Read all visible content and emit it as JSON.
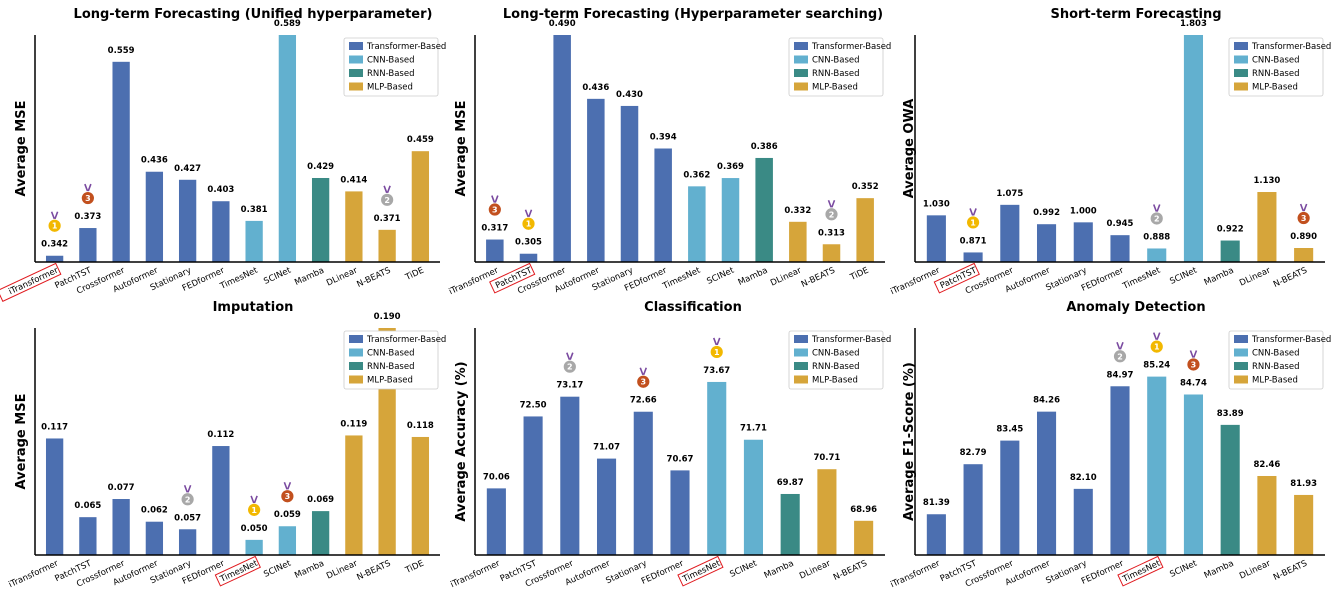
{
  "colors": {
    "Transformer-Based": "#4c6fb0",
    "CNN-Based": "#62b0cf",
    "RNN-Based": "#3a8a85",
    "MLP-Based": "#d6a53a",
    "highlight": "#e0191e",
    "gold": "#f2b800",
    "silver": "#a8a8a8",
    "bronze": "#c2501e"
  },
  "legend": {
    "entries": [
      "Transformer-Based",
      "CNN-Based",
      "RNN-Based",
      "MLP-Based"
    ],
    "placement": "top-right"
  },
  "chart_data": [
    {
      "type": "bar",
      "title": "Long-term Forecasting (Unified hyperparameter)",
      "ylabel": "Average MSE",
      "categories": [
        "iTransformer",
        "PatchTST",
        "Crossformer",
        "Autoformer",
        "Stationary",
        "FEDformer",
        "TimesNet",
        "SCINet",
        "Mamba",
        "DLinear",
        "N-BEATS",
        "TiDE"
      ],
      "values": [
        0.342,
        0.373,
        0.559,
        0.436,
        0.427,
        0.403,
        0.381,
        0.589,
        0.429,
        0.414,
        0.371,
        0.459
      ],
      "value_labels": [
        "0.342",
        "0.373",
        "0.559",
        "0.436",
        "0.427",
        "0.403",
        "0.381",
        "0.589",
        "0.429",
        "0.414",
        "0.371",
        "0.459"
      ],
      "groups": [
        "Transformer-Based",
        "Transformer-Based",
        "Transformer-Based",
        "Transformer-Based",
        "Transformer-Based",
        "Transformer-Based",
        "CNN-Based",
        "CNN-Based",
        "RNN-Based",
        "MLP-Based",
        "MLP-Based",
        "MLP-Based"
      ],
      "ylim": [
        0.335,
        0.589
      ],
      "highlight_category": "iTransformer",
      "medals": [
        {
          "index": 0,
          "rank": "1"
        },
        {
          "index": 10,
          "rank": "2"
        },
        {
          "index": 1,
          "rank": "3"
        }
      ]
    },
    {
      "type": "bar",
      "title": "Long-term Forecasting (Hyperparameter searching)",
      "ylabel": "Average MSE",
      "categories": [
        "iTransformer",
        "PatchTST",
        "Crossformer",
        "Autoformer",
        "Stationary",
        "FEDformer",
        "TimesNet",
        "SCINet",
        "Mamba",
        "DLinear",
        "N-BEATS",
        "TiDE"
      ],
      "values": [
        0.317,
        0.305,
        0.49,
        0.436,
        0.43,
        0.394,
        0.362,
        0.369,
        0.386,
        0.332,
        0.313,
        0.352
      ],
      "value_labels": [
        "0.317",
        "0.305",
        "0.490",
        "0.436",
        "0.430",
        "0.394",
        "0.362",
        "0.369",
        "0.386",
        "0.332",
        "0.313",
        "0.352"
      ],
      "groups": [
        "Transformer-Based",
        "Transformer-Based",
        "Transformer-Based",
        "Transformer-Based",
        "Transformer-Based",
        "Transformer-Based",
        "CNN-Based",
        "CNN-Based",
        "RNN-Based",
        "MLP-Based",
        "MLP-Based",
        "MLP-Based"
      ],
      "ylim": [
        0.298,
        0.49
      ],
      "highlight_category": "PatchTST",
      "medals": [
        {
          "index": 1,
          "rank": "1"
        },
        {
          "index": 10,
          "rank": "2"
        },
        {
          "index": 0,
          "rank": "3"
        }
      ]
    },
    {
      "type": "bar",
      "title": "Short-term Forecasting",
      "ylabel": "Average OWA",
      "categories": [
        "iTransformer",
        "PatchTST",
        "Crossformer",
        "Autoformer",
        "Stationary",
        "FEDformer",
        "TimesNet",
        "SCINet",
        "Mamba",
        "DLinear",
        "N-BEATS"
      ],
      "values": [
        1.03,
        0.871,
        1.075,
        0.992,
        1.0,
        0.945,
        0.888,
        1.803,
        0.922,
        1.13,
        0.89
      ],
      "value_labels": [
        "1.030",
        "0.871",
        "1.075",
        "0.992",
        "1.000",
        "0.945",
        "0.888",
        "1.803",
        "0.922",
        "1.130",
        "0.890"
      ],
      "groups": [
        "Transformer-Based",
        "Transformer-Based",
        "Transformer-Based",
        "Transformer-Based",
        "Transformer-Based",
        "Transformer-Based",
        "CNN-Based",
        "CNN-Based",
        "RNN-Based",
        "MLP-Based",
        "MLP-Based"
      ],
      "ylim": [
        0.83,
        1.803
      ],
      "highlight_category": "PatchTST",
      "medals": [
        {
          "index": 1,
          "rank": "1"
        },
        {
          "index": 6,
          "rank": "2"
        },
        {
          "index": 10,
          "rank": "3"
        }
      ]
    },
    {
      "type": "bar",
      "title": "Imputation",
      "ylabel": "Average MSE",
      "categories": [
        "iTransformer",
        "PatchTST",
        "Crossformer",
        "Autoformer",
        "Stationary",
        "FEDformer",
        "TimesNet",
        "SCINet",
        "Mamba",
        "DLinear",
        "N-BEATS",
        "TiDE"
      ],
      "values": [
        0.117,
        0.065,
        0.077,
        0.062,
        0.057,
        0.112,
        0.05,
        0.059,
        0.069,
        0.119,
        0.19,
        0.118
      ],
      "value_labels": [
        "0.117",
        "0.065",
        "0.077",
        "0.062",
        "0.057",
        "0.112",
        "0.050",
        "0.059",
        "0.069",
        "0.119",
        "0.190",
        "0.118"
      ],
      "groups": [
        "Transformer-Based",
        "Transformer-Based",
        "Transformer-Based",
        "Transformer-Based",
        "Transformer-Based",
        "Transformer-Based",
        "CNN-Based",
        "CNN-Based",
        "RNN-Based",
        "MLP-Based",
        "MLP-Based",
        "MLP-Based"
      ],
      "ylim": [
        0.04,
        0.19
      ],
      "highlight_category": "TimesNet",
      "medals": [
        {
          "index": 6,
          "rank": "1"
        },
        {
          "index": 4,
          "rank": "2"
        },
        {
          "index": 7,
          "rank": "3"
        }
      ]
    },
    {
      "type": "bar",
      "title": "Classification",
      "ylabel": "Average Accuracy (%)",
      "categories": [
        "iTransformer",
        "PatchTST",
        "Crossformer",
        "Autoformer",
        "Stationary",
        "FEDformer",
        "TimesNet",
        "SCINet",
        "Mamba",
        "DLinear",
        "N-BEATS"
      ],
      "values": [
        70.06,
        72.5,
        73.17,
        71.07,
        72.66,
        70.67,
        73.67,
        71.71,
        69.87,
        70.71,
        68.96
      ],
      "value_labels": [
        "70.06",
        "72.50",
        "73.17",
        "71.07",
        "72.66",
        "70.67",
        "73.67",
        "71.71",
        "69.87",
        "70.71",
        "68.96"
      ],
      "groups": [
        "Transformer-Based",
        "Transformer-Based",
        "Transformer-Based",
        "Transformer-Based",
        "Transformer-Based",
        "Transformer-Based",
        "CNN-Based",
        "CNN-Based",
        "RNN-Based",
        "MLP-Based",
        "MLP-Based"
      ],
      "ylim": [
        67.8,
        75.5
      ],
      "highlight_category": "TimesNet",
      "medals": [
        {
          "index": 6,
          "rank": "1"
        },
        {
          "index": 2,
          "rank": "2"
        },
        {
          "index": 4,
          "rank": "3"
        }
      ]
    },
    {
      "type": "bar",
      "title": "Anomaly Detection",
      "ylabel": "Average F1-Score (%)",
      "categories": [
        "iTransformer",
        "PatchTST",
        "Crossformer",
        "Autoformer",
        "Stationary",
        "FEDformer",
        "TimesNet",
        "SCINet",
        "Mamba",
        "DLinear",
        "N-BEATS"
      ],
      "values": [
        81.39,
        82.79,
        83.45,
        84.26,
        82.1,
        84.97,
        85.24,
        84.74,
        83.89,
        82.46,
        81.93
      ],
      "value_labels": [
        "81.39",
        "82.79",
        "83.45",
        "84.26",
        "82.10",
        "84.97",
        "85.24",
        "84.74",
        "83.89",
        "82.46",
        "81.93"
      ],
      "groups": [
        "Transformer-Based",
        "Transformer-Based",
        "Transformer-Based",
        "Transformer-Based",
        "Transformer-Based",
        "Transformer-Based",
        "CNN-Based",
        "CNN-Based",
        "RNN-Based",
        "MLP-Based",
        "MLP-Based"
      ],
      "ylim": [
        80.25,
        86.6
      ],
      "highlight_category": "TimesNet",
      "medals": [
        {
          "index": 6,
          "rank": "1"
        },
        {
          "index": 5,
          "rank": "2"
        },
        {
          "index": 7,
          "rank": "3"
        }
      ]
    }
  ]
}
